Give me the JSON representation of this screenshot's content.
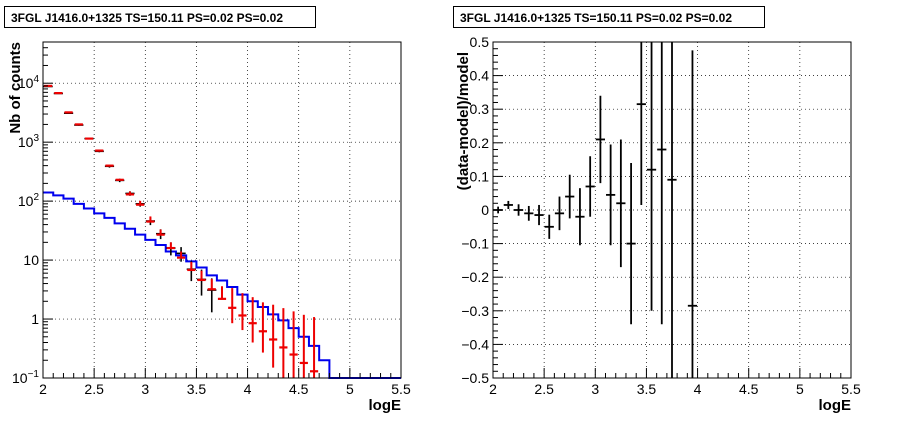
{
  "chart_data": [
    {
      "type": "histogram",
      "title": "3FGL J1416.0+1325 TS=150.11 PS=0.02 PS=0.02",
      "xlabel": "logE",
      "ylabel": "Nb of counts",
      "xlim": [
        2,
        5.5
      ],
      "ylim": [
        0.1,
        50000
      ],
      "yscale": "log",
      "grid": true,
      "x_ticks": [
        "2",
        "2.5",
        "3",
        "3.5",
        "4",
        "4.5",
        "5",
        "5.5"
      ],
      "y_ticks": [
        "10^-1",
        "1",
        "10",
        "10^2",
        "10^3",
        "10^4"
      ],
      "bin_edges": [
        2.0,
        2.1,
        2.2,
        2.3,
        2.4,
        2.5,
        2.6,
        2.7,
        2.8,
        2.9,
        3.0,
        3.1,
        3.2,
        3.3,
        3.4,
        3.5,
        3.6,
        3.7,
        3.8,
        3.9,
        4.0,
        4.1,
        4.2,
        4.3,
        4.4,
        4.5,
        4.6,
        4.7,
        4.8,
        4.9,
        5.0,
        5.1,
        5.2,
        5.3,
        5.4,
        5.5
      ],
      "series": [
        {
          "role": "blue-step",
          "color": "#0000ee",
          "values": [
            140,
            125,
            110,
            90,
            75,
            62,
            52,
            42,
            34,
            27,
            22,
            18,
            14,
            12,
            9.5,
            7.5,
            5.5,
            4.5,
            3.5,
            2.6,
            2.0,
            1.6,
            1.2,
            0.95,
            0.7,
            0.5,
            0.35,
            0.2,
            0.1,
            0.1,
            0.1,
            0.1,
            0.1,
            0.1,
            0.1
          ]
        },
        {
          "role": "red-model",
          "color": "#ee0000",
          "values": [
            9000,
            6800,
            3200,
            2000,
            1150,
            720,
            400,
            230,
            130,
            87,
            45,
            27,
            16,
            11,
            6.8,
            4.6,
            3.2,
            2.2,
            1.55,
            1.15,
            0.85,
            0.62,
            0.45,
            0.33,
            0.25,
            0.18,
            0.13
          ],
          "err_low": [
            0,
            0,
            0,
            0,
            0,
            0,
            0,
            0,
            0,
            0,
            0,
            0,
            0,
            0,
            0,
            0,
            0,
            0,
            0.7,
            0.5,
            0.45,
            0.35,
            0.3,
            0.25,
            0.2,
            0.14,
            0.1
          ],
          "err_high": [
            0,
            0,
            0,
            0,
            0,
            0,
            0,
            0,
            15,
            14,
            10,
            6,
            4,
            3,
            2.5,
            2.0,
            1.6,
            1.4,
            1.8,
            1.6,
            1.5,
            1.3,
            1.3,
            1.2,
            1.1,
            1.0,
            0.95
          ]
        },
        {
          "role": "black-data",
          "color": "#000000",
          "values": [
            8800,
            6700,
            3100,
            1950,
            1150,
            700,
            390,
            225,
            135,
            90,
            46,
            28,
            16,
            13,
            7.0,
            4.7,
            3.1
          ],
          "err": [
            94,
            82,
            56,
            44,
            34,
            26,
            20,
            15,
            12,
            9.5,
            6.8,
            5.3,
            4,
            3.6,
            2.6,
            2.2,
            1.8
          ]
        }
      ]
    },
    {
      "type": "scatter",
      "title": "3FGL J1416.0+1325 TS=150.11 PS=0.02 PS=0.02",
      "xlabel": "logE",
      "ylabel": "(data-model)/model",
      "xlim": [
        2,
        5.5
      ],
      "ylim": [
        -0.5,
        0.5
      ],
      "grid": true,
      "x_ticks": [
        "2",
        "2.5",
        "3",
        "3.5",
        "4",
        "4.5",
        "5",
        "5.5"
      ],
      "y_ticks": [
        "-0.5",
        "-0.4",
        "-0.3",
        "-0.2",
        "-0.1",
        "0",
        "0.1",
        "0.2",
        "0.3",
        "0.4",
        "0.5"
      ],
      "points": [
        {
          "x": 2.05,
          "y": 0.0,
          "err": 0.01
        },
        {
          "x": 2.15,
          "y": 0.015,
          "err": 0.012
        },
        {
          "x": 2.25,
          "y": 0.0,
          "err": 0.017
        },
        {
          "x": 2.35,
          "y": -0.01,
          "err": 0.022
        },
        {
          "x": 2.45,
          "y": -0.015,
          "err": 0.03
        },
        {
          "x": 2.55,
          "y": -0.05,
          "err": 0.036
        },
        {
          "x": 2.65,
          "y": -0.01,
          "err": 0.05
        },
        {
          "x": 2.75,
          "y": 0.04,
          "err": 0.065
        },
        {
          "x": 2.85,
          "y": -0.02,
          "err": 0.085
        },
        {
          "x": 2.95,
          "y": 0.07,
          "err": 0.09
        },
        {
          "x": 3.05,
          "y": 0.21,
          "err": 0.13
        },
        {
          "x": 3.15,
          "y": 0.045,
          "err": 0.15
        },
        {
          "x": 3.25,
          "y": 0.02,
          "err": 0.19
        },
        {
          "x": 3.35,
          "y": -0.1,
          "err": 0.24
        },
        {
          "x": 3.45,
          "y": 0.315,
          "err": 0.3
        },
        {
          "x": 3.55,
          "y": 0.12,
          "err": 0.42
        },
        {
          "x": 3.65,
          "y": 0.18,
          "err": 0.52
        },
        {
          "x": 3.75,
          "y": 0.09,
          "err": 0.6
        },
        {
          "x": 3.95,
          "y": -0.285,
          "err": 0.76
        }
      ]
    }
  ]
}
